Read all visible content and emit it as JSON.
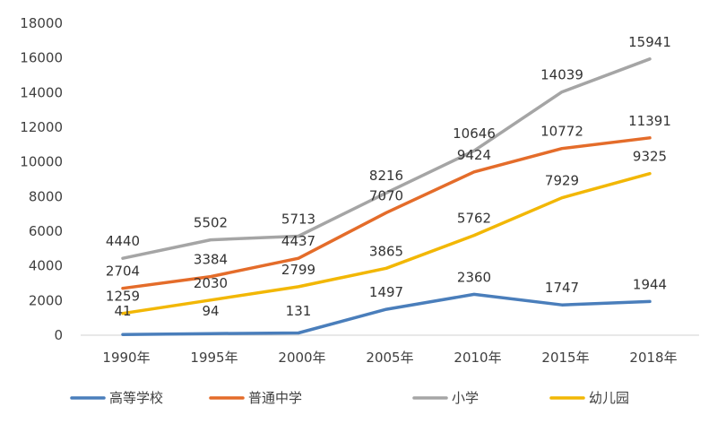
{
  "chart_data": {
    "type": "line",
    "categories": [
      "1990年",
      "1995年",
      "2000年",
      "2005年",
      "2010年",
      "2015年",
      "2018年"
    ],
    "ylim": [
      0,
      18000
    ],
    "yticks": [
      0,
      2000,
      4000,
      6000,
      8000,
      10000,
      12000,
      14000,
      16000,
      18000
    ],
    "grid": false,
    "legend_position": "bottom",
    "series": [
      {
        "name": "高等学校",
        "color": "#4a7ebb",
        "values": [
          null,
          null,
          null,
          1497,
          2360,
          1747,
          1944
        ]
      },
      {
        "name": "普通中学",
        "color": "#e46c2a",
        "values": [
          2704,
          3384,
          4437,
          7070,
          9424,
          10772,
          11391
        ]
      },
      {
        "name": "小学",
        "color": "#a5a5a5",
        "values": [
          4440,
          5502,
          5713,
          8216,
          10646,
          14039,
          15941
        ]
      },
      {
        "name": "幼儿园",
        "color": "#f2b705",
        "values": [
          1259,
          2030,
          2799,
          3865,
          5762,
          7929,
          9325
        ]
      }
    ],
    "extra_labels": [
      {
        "category_index": 0,
        "text": "41"
      },
      {
        "category_index": 1,
        "text": "94"
      },
      {
        "category_index": 2,
        "text": "131"
      }
    ]
  }
}
